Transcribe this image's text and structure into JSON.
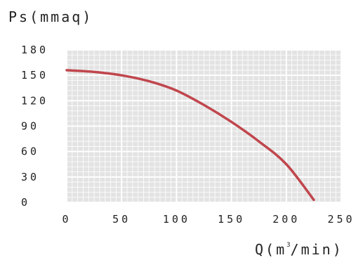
{
  "chart_data": {
    "type": "line",
    "title": "",
    "ylabel": "Ps(mmaq)",
    "xlabel": {
      "pre": "Q(m",
      "sup": "3",
      "post": "/min)"
    },
    "xlim": [
      0,
      250
    ],
    "ylim": [
      0,
      180
    ],
    "x_ticks": [
      "0",
      "50",
      "100",
      "150",
      "200",
      "250"
    ],
    "y_ticks": [
      "180",
      "150",
      "120",
      "90",
      "60",
      "30",
      "0"
    ],
    "x_tick_values": [
      0,
      50,
      100,
      150,
      200,
      250
    ],
    "y_tick_values": [
      180,
      150,
      120,
      90,
      60,
      30,
      0
    ],
    "grid": true,
    "series": [
      {
        "color": "#c0464d",
        "x": [
          0,
          25,
          50,
          75,
          100,
          125,
          150,
          175,
          200,
          225
        ],
        "y": [
          156,
          154,
          150,
          143,
          132,
          115,
          95,
          72,
          45,
          3
        ]
      }
    ]
  }
}
